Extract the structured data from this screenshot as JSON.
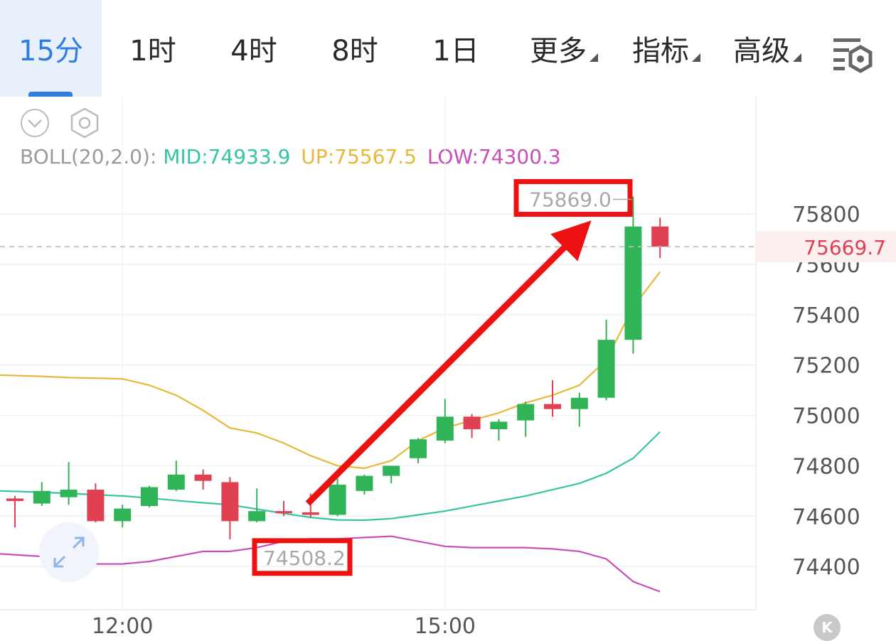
{
  "tabs": [
    {
      "label": "15分",
      "active": true
    },
    {
      "label": "1时"
    },
    {
      "label": "4时"
    },
    {
      "label": "8时"
    },
    {
      "label": "1日"
    },
    {
      "label": "更多",
      "dropdown": true
    },
    {
      "label": "指标",
      "dropdown": true
    },
    {
      "label": "高级",
      "dropdown": true
    }
  ],
  "icons": {
    "settings": "chart-settings-icon",
    "collapse": "chevron-down-circle-icon",
    "hexagon": "hexagon-settings-icon",
    "expand": "expand-arrows-icon",
    "k": "k-logo-icon"
  },
  "indicator": {
    "name": "BOLL(20,2.0):",
    "mid_label": "MID:74933.9",
    "up_label": "UP:75567.5",
    "low_label": "LOW:74300.3"
  },
  "colors": {
    "up": "#2fb457",
    "down": "#e04152",
    "mid": "#36c4a3",
    "upper": "#e8b83a",
    "lower": "#c94fb8",
    "accent": "#2f7de1",
    "annot": "#ee1111"
  },
  "k_label": "K",
  "chart_data": {
    "type": "candlestick",
    "y_ticks": [
      75800,
      75600,
      75400,
      75200,
      75000,
      74800,
      74600,
      74400
    ],
    "x_ticks": [
      {
        "label": "12:00",
        "index": 4
      },
      {
        "label": "15:00",
        "index": 16
      }
    ],
    "last_price": "75669.7",
    "last_price_value": 75669.7,
    "max_label": "75869.0",
    "max_value": 75869.0,
    "min_label": "74508.2",
    "min_value": 74508.2,
    "candles": [
      {
        "o": 74670,
        "h": 74680,
        "l": 74555,
        "c": 74660
      },
      {
        "o": 74650,
        "h": 74735,
        "l": 74640,
        "c": 74700
      },
      {
        "o": 74675,
        "h": 74815,
        "l": 74645,
        "c": 74705
      },
      {
        "o": 74705,
        "h": 74730,
        "l": 74575,
        "c": 74580
      },
      {
        "o": 74580,
        "h": 74645,
        "l": 74555,
        "c": 74630
      },
      {
        "o": 74640,
        "h": 74720,
        "l": 74635,
        "c": 74715
      },
      {
        "o": 74705,
        "h": 74820,
        "l": 74700,
        "c": 74765
      },
      {
        "o": 74765,
        "h": 74785,
        "l": 74705,
        "c": 74740
      },
      {
        "o": 74735,
        "h": 74755,
        "l": 74508.2,
        "c": 74580
      },
      {
        "o": 74580,
        "h": 74710,
        "l": 74575,
        "c": 74620
      },
      {
        "o": 74620,
        "h": 74660,
        "l": 74600,
        "c": 74615
      },
      {
        "o": 74615,
        "h": 74690,
        "l": 74595,
        "c": 74605
      },
      {
        "o": 74605,
        "h": 74750,
        "l": 74600,
        "c": 74725
      },
      {
        "o": 74700,
        "h": 74765,
        "l": 74685,
        "c": 74760
      },
      {
        "o": 74760,
        "h": 74795,
        "l": 74730,
        "c": 74800
      },
      {
        "o": 74830,
        "h": 74910,
        "l": 74810,
        "c": 74905
      },
      {
        "o": 74900,
        "h": 75065,
        "l": 74890,
        "c": 74995
      },
      {
        "o": 74995,
        "h": 75005,
        "l": 74910,
        "c": 74945
      },
      {
        "o": 74945,
        "h": 74985,
        "l": 74900,
        "c": 74975
      },
      {
        "o": 74980,
        "h": 75055,
        "l": 74915,
        "c": 75045
      },
      {
        "o": 75045,
        "h": 75140,
        "l": 74995,
        "c": 75025
      },
      {
        "o": 75025,
        "h": 75090,
        "l": 74955,
        "c": 75070
      },
      {
        "o": 75070,
        "h": 75380,
        "l": 75060,
        "c": 75300
      },
      {
        "o": 75300,
        "h": 75869.0,
        "l": 75245,
        "c": 75750
      },
      {
        "o": 75750,
        "h": 75785,
        "l": 75625,
        "c": 75669.7
      }
    ],
    "boll_mid": [
      74700,
      74695,
      74690,
      74685,
      74680,
      74672,
      74662,
      74653,
      74645,
      74628,
      74611,
      74595,
      74585,
      74584,
      74590,
      74605,
      74620,
      74640,
      74660,
      74680,
      74705,
      74730,
      74770,
      74830,
      74935
    ],
    "boll_upper": [
      75160,
      75155,
      75150,
      75148,
      75145,
      75120,
      75080,
      75020,
      74950,
      74930,
      74890,
      74840,
      74800,
      74790,
      74820,
      74900,
      74950,
      74980,
      75010,
      75050,
      75080,
      75120,
      75220,
      75430,
      75570
    ],
    "boll_lower": [
      74450,
      74440,
      74420,
      74410,
      74410,
      74420,
      74440,
      74460,
      74460,
      74475,
      74500,
      74510,
      74510,
      74515,
      74520,
      74500,
      74480,
      74475,
      74475,
      74475,
      74470,
      74460,
      74430,
      74340,
      74300
    ]
  }
}
